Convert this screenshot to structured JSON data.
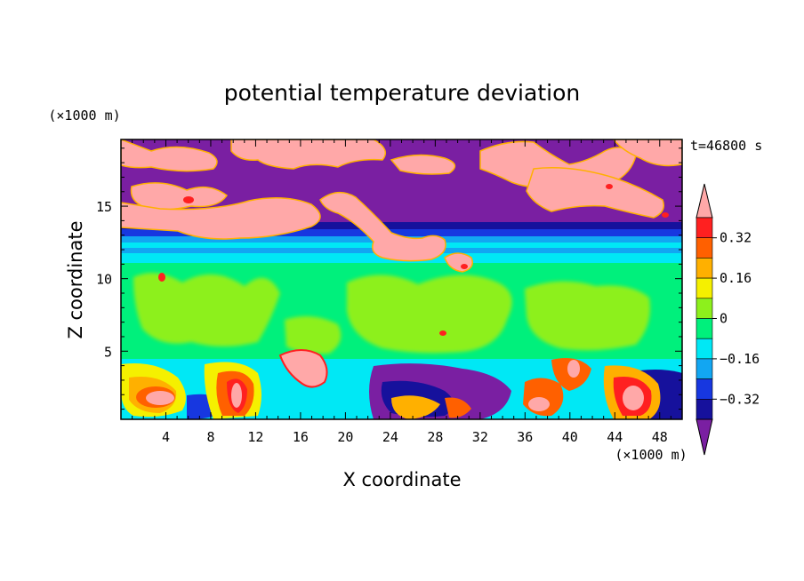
{
  "chart_data": {
    "type": "heatmap",
    "title": "potential temperature deviation",
    "xlabel": "X coordinate",
    "ylabel": "Z coordinate",
    "x_unit": "(×1000 m)",
    "y_unit": "(×1000 m)",
    "time_label": "t=46800 s",
    "xlim": [
      0,
      50
    ],
    "ylim": [
      0.3,
      19.6
    ],
    "x_ticks": [
      4,
      8,
      12,
      16,
      20,
      24,
      28,
      32,
      36,
      40,
      44,
      48
    ],
    "y_ticks": [
      5,
      10,
      15
    ],
    "colorbar": {
      "levels": [
        -0.4,
        -0.32,
        -0.24,
        -0.16,
        -0.08,
        0,
        0.08,
        0.16,
        0.24,
        0.32,
        0.4
      ],
      "colors": [
        "#7a1fa2",
        "#16119c",
        "#1737e0",
        "#12a6f2",
        "#00e8f5",
        "#00f07c",
        "#8df01c",
        "#f5f000",
        "#ffb000",
        "#ff6000",
        "#ff2020",
        "#ffa8a8"
      ],
      "labeled_ticks": [
        "0.32",
        "0.16",
        "0",
        "−0.16",
        "−0.32"
      ],
      "extend": "both"
    },
    "field_layers": [
      {
        "z_range": [
          0.3,
          4.4
        ],
        "description": "boundary layer: mixed warm (red/pink) and cool (blue/purple) eddies"
      },
      {
        "z_range": [
          4.4,
          11.0
        ],
        "value_approx": 0.0,
        "description": "near-neutral green layer with light-green patches"
      },
      {
        "z_range": [
          11.0,
          13.8
        ],
        "value_approx": -0.2,
        "description": "cool cyan/blue stripes"
      },
      {
        "z_range": [
          13.8,
          19.6
        ],
        "description": "alternating strong positive (pink) and negative (purple) regions"
      }
    ]
  },
  "colors": {
    "background": "#ffffff",
    "frame": "#000000"
  }
}
